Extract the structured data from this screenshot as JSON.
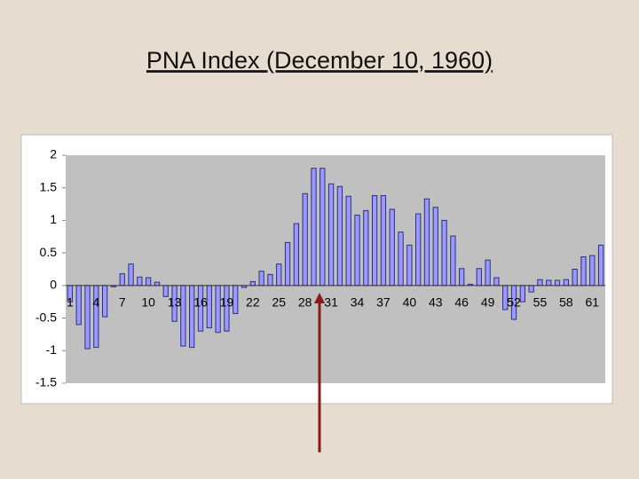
{
  "chart_data": {
    "type": "bar",
    "title": "PNA Index (December 10, 1960)",
    "categories": [
      1,
      null,
      null,
      4,
      null,
      null,
      7,
      null,
      null,
      10,
      null,
      null,
      13,
      null,
      null,
      16,
      null,
      null,
      19,
      null,
      null,
      22,
      null,
      null,
      25,
      null,
      null,
      28,
      null,
      null,
      31,
      null,
      null,
      34,
      null,
      null,
      37,
      null,
      null,
      40,
      null,
      null,
      43,
      null,
      null,
      46,
      null,
      null,
      49,
      null,
      null,
      52,
      null,
      null,
      55,
      null,
      null,
      58,
      null,
      null,
      61,
      null
    ],
    "values": [
      -0.25,
      -0.6,
      -0.97,
      -0.95,
      -0.48,
      -0.02,
      0.18,
      0.33,
      0.13,
      0.12,
      0.05,
      -0.17,
      -0.55,
      -0.93,
      -0.95,
      -0.7,
      -0.65,
      -0.72,
      -0.7,
      -0.43,
      -0.03,
      0.06,
      0.22,
      0.17,
      0.33,
      0.66,
      0.95,
      1.41,
      1.8,
      1.8,
      1.56,
      1.52,
      1.37,
      1.08,
      1.15,
      1.38,
      1.38,
      1.17,
      0.82,
      0.62,
      1.1,
      1.33,
      1.2,
      1.0,
      0.76,
      0.26,
      0.02,
      0.26,
      0.39,
      0.12,
      -0.37,
      -0.52,
      -0.25,
      -0.1,
      0.09,
      0.08,
      0.08,
      0.09,
      0.25,
      0.44,
      0.46,
      0.62
    ],
    "color": "#9999ff",
    "ylim": [
      -1.5,
      2
    ],
    "yticks": [
      -1.5,
      -1,
      -0.5,
      0,
      0.5,
      1,
      1.5,
      2
    ]
  }
}
